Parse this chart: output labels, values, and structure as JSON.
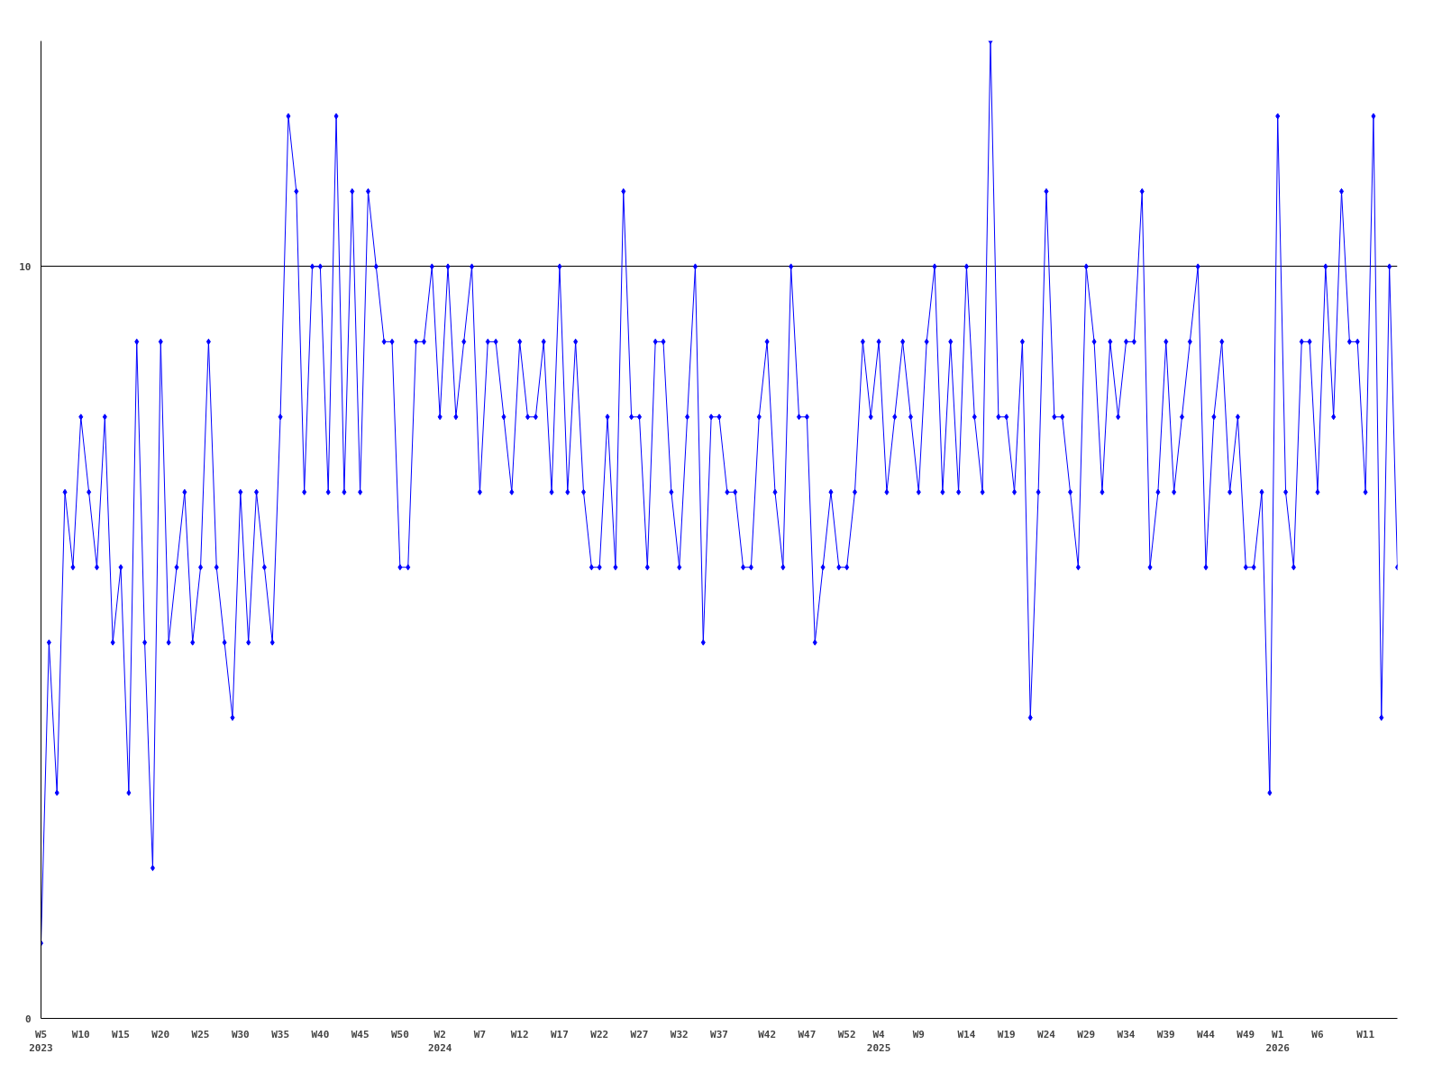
{
  "chart_data": {
    "type": "line",
    "marker": "diamond",
    "grid": "y",
    "ylim": [
      0,
      13
    ],
    "yticks": [
      0,
      10
    ],
    "categories": [
      "W5\n2023",
      null,
      null,
      null,
      null,
      "W10",
      null,
      null,
      null,
      null,
      "W15",
      null,
      null,
      null,
      null,
      "W20",
      null,
      null,
      null,
      null,
      "W25",
      null,
      null,
      null,
      null,
      "W30",
      null,
      null,
      null,
      null,
      "W35",
      null,
      null,
      null,
      null,
      "W40",
      null,
      null,
      null,
      null,
      "W45",
      null,
      null,
      null,
      null,
      "W50",
      null,
      null,
      null,
      null,
      "W2\n2024",
      null,
      null,
      null,
      null,
      "W7",
      null,
      null,
      null,
      null,
      "W12",
      null,
      null,
      null,
      null,
      "W17",
      null,
      null,
      null,
      null,
      "W22",
      null,
      null,
      null,
      null,
      "W27",
      null,
      null,
      null,
      null,
      "W32",
      null,
      null,
      null,
      null,
      "W37",
      null,
      null,
      null,
      null,
      null,
      "W42",
      null,
      null,
      null,
      null,
      "W47",
      null,
      null,
      null,
      null,
      "W52",
      null,
      null,
      null,
      "W4\n2025",
      null,
      null,
      null,
      null,
      "W9",
      null,
      null,
      null,
      null,
      null,
      "W14",
      null,
      null,
      null,
      null,
      "W19",
      null,
      null,
      null,
      null,
      "W24",
      null,
      null,
      null,
      null,
      "W29",
      null,
      null,
      null,
      null,
      "W34",
      null,
      null,
      null,
      null,
      "W39",
      null,
      null,
      null,
      null,
      "W44",
      null,
      null,
      null,
      null,
      "W49",
      null,
      null,
      null,
      "W1\n2026",
      null,
      null,
      null,
      null,
      "W6",
      null,
      null,
      null,
      null,
      null,
      "W11",
      null,
      null,
      null,
      null
    ],
    "series": [
      {
        "color": "#0000ff",
        "values": [
          1,
          5,
          3,
          7,
          6,
          8,
          7,
          6,
          8,
          5,
          6,
          3,
          9,
          5,
          2,
          9,
          5,
          6,
          7,
          5,
          6,
          9,
          6,
          5,
          4,
          7,
          5,
          7,
          6,
          5,
          8,
          12,
          11,
          7,
          10,
          10,
          7,
          12,
          7,
          11,
          7,
          11,
          10,
          9,
          9,
          6,
          6,
          9,
          9,
          10,
          8,
          10,
          8,
          9,
          10,
          7,
          9,
          9,
          8,
          7,
          9,
          8,
          8,
          9,
          7,
          10,
          7,
          9,
          7,
          6,
          6,
          8,
          6,
          11,
          8,
          8,
          6,
          9,
          9,
          7,
          6,
          8,
          10,
          5,
          8,
          8,
          7,
          7,
          6,
          6,
          8,
          9,
          7,
          6,
          10,
          8,
          8,
          5,
          6,
          7,
          6,
          6,
          7,
          9,
          8,
          9,
          7,
          8,
          9,
          8,
          7,
          9,
          10,
          7,
          9,
          7,
          10,
          8,
          7,
          13,
          8,
          8,
          7,
          9,
          4,
          7,
          11,
          8,
          8,
          7,
          6,
          10,
          9,
          7,
          9,
          8,
          9,
          9,
          11,
          6,
          7,
          9,
          7,
          8,
          9,
          10,
          6,
          8,
          9,
          7,
          8,
          6,
          6,
          7,
          3,
          12,
          7,
          6,
          9,
          9,
          7,
          10,
          8,
          11,
          9,
          9,
          7,
          12,
          4,
          10,
          6
        ]
      }
    ]
  }
}
